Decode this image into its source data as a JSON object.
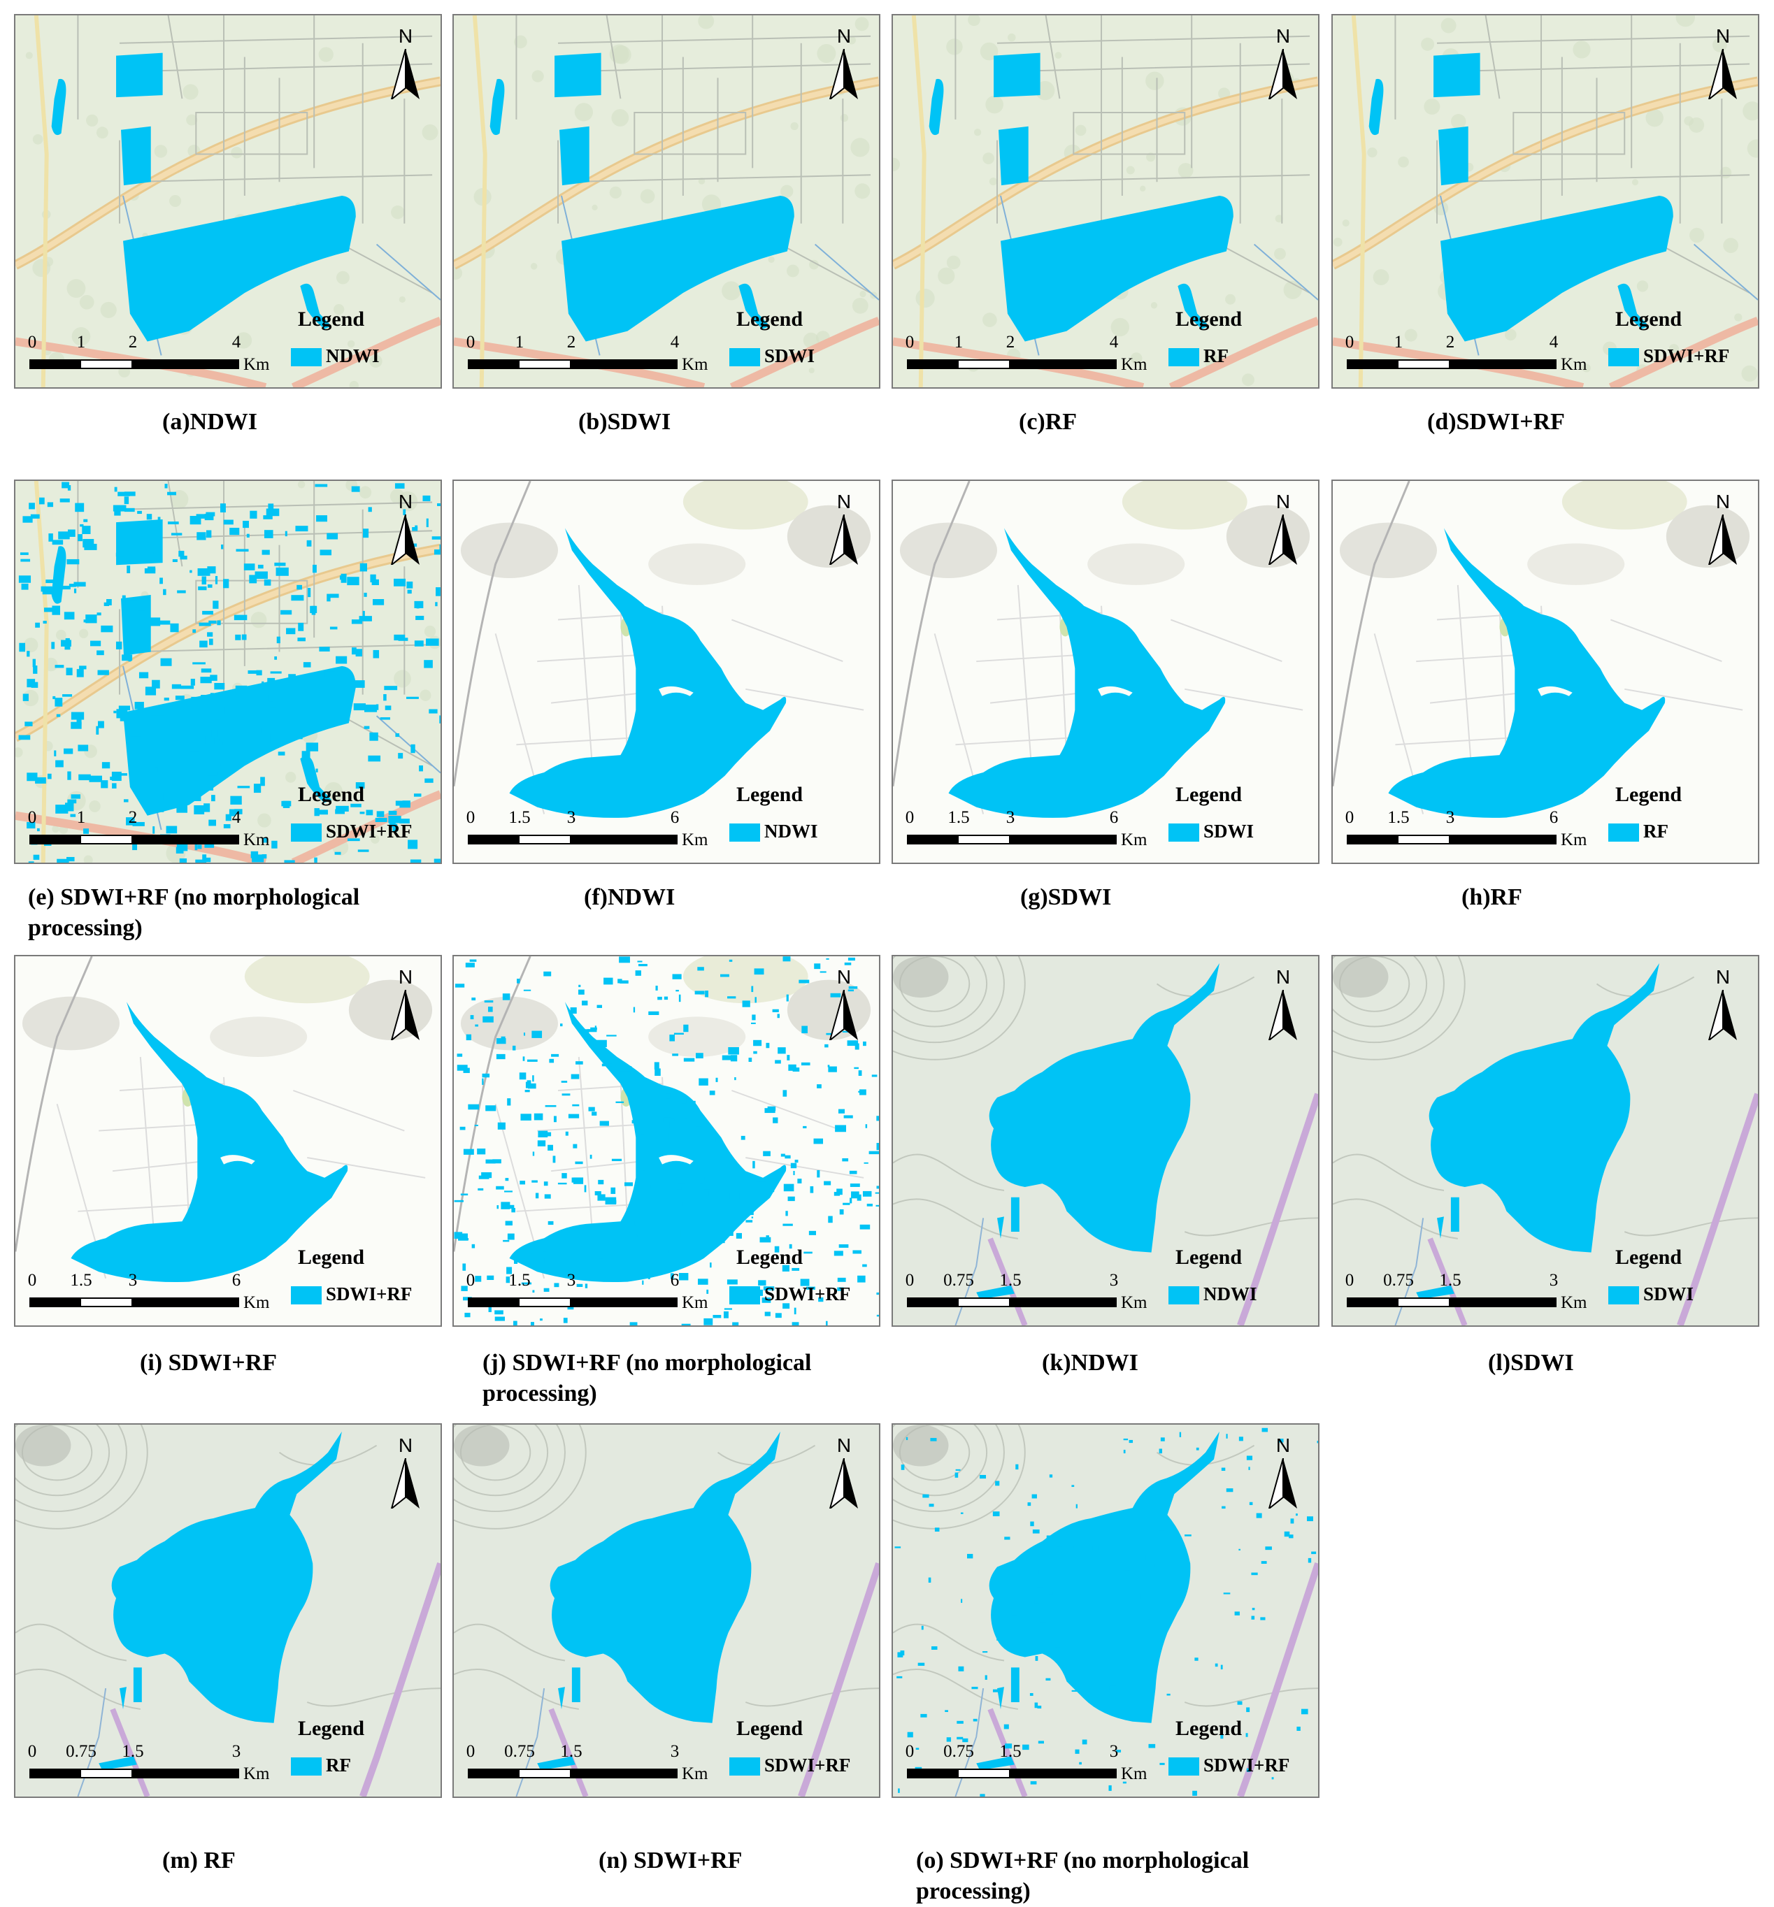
{
  "colors": {
    "water": "#00c3f5",
    "panel_border": "#7a7a7a"
  },
  "north_label": "N",
  "legend_title": "Legend",
  "scale_unit": "Km",
  "panels": [
    {
      "id": "a",
      "legend": "NDWI",
      "scale": [
        "0",
        "1",
        "2",
        "4"
      ],
      "caption": "(a)NDWI",
      "scene": "scene1",
      "noisy": false
    },
    {
      "id": "b",
      "legend": "SDWI",
      "scale": [
        "0",
        "1",
        "2",
        "4"
      ],
      "caption": "(b)SDWI",
      "scene": "scene1",
      "noisy": false
    },
    {
      "id": "c",
      "legend": "RF",
      "scale": [
        "0",
        "1",
        "2",
        "4"
      ],
      "caption": "(c)RF",
      "scene": "scene1",
      "noisy": false
    },
    {
      "id": "d",
      "legend": "SDWI+RF",
      "scale": [
        "0",
        "1",
        "2",
        "4"
      ],
      "caption": "(d)SDWI+RF",
      "scene": "scene1",
      "noisy": false
    },
    {
      "id": "e",
      "legend": "SDWI+RF",
      "scale": [
        "0",
        "1",
        "2",
        "4"
      ],
      "caption": "(e) SDWI+RF (no morphological processing)",
      "scene": "scene1",
      "noisy": true
    },
    {
      "id": "f",
      "legend": "NDWI",
      "scale": [
        "0",
        "1.5",
        "3",
        "6"
      ],
      "caption": "(f)NDWI",
      "scene": "scene2",
      "noisy": false
    },
    {
      "id": "g",
      "legend": "SDWI",
      "scale": [
        "0",
        "1.5",
        "3",
        "6"
      ],
      "caption": "(g)SDWI",
      "scene": "scene2",
      "noisy": false
    },
    {
      "id": "h",
      "legend": "RF",
      "scale": [
        "0",
        "1.5",
        "3",
        "6"
      ],
      "caption": "(h)RF",
      "scene": "scene2",
      "noisy": false
    },
    {
      "id": "i",
      "legend": "SDWI+RF",
      "scale": [
        "0",
        "1.5",
        "3",
        "6"
      ],
      "caption": "(i) SDWI+RF",
      "scene": "scene2",
      "noisy": false
    },
    {
      "id": "j",
      "legend": "SDWI+RF",
      "scale": [
        "0",
        "1.5",
        "3",
        "6"
      ],
      "caption": "(j) SDWI+RF (no morphological processing)",
      "scene": "scene2",
      "noisy": true
    },
    {
      "id": "k",
      "legend": "NDWI",
      "scale": [
        "0",
        "0.75",
        "1.5",
        "3"
      ],
      "caption": "(k)NDWI",
      "scene": "scene3",
      "noisy": false
    },
    {
      "id": "l",
      "legend": "SDWI",
      "scale": [
        "0",
        "0.75",
        "1.5",
        "3"
      ],
      "caption": "(l)SDWI",
      "scene": "scene3",
      "noisy": false
    },
    {
      "id": "m",
      "legend": "RF",
      "scale": [
        "0",
        "0.75",
        "1.5",
        "3"
      ],
      "caption": "(m) RF",
      "scene": "scene3",
      "noisy": false
    },
    {
      "id": "n",
      "legend": "SDWI+RF",
      "scale": [
        "0",
        "0.75",
        "1.5",
        "3"
      ],
      "caption": "(n) SDWI+RF",
      "scene": "scene3",
      "noisy": false
    },
    {
      "id": "o",
      "legend": "SDWI+RF",
      "scale": [
        "0",
        "0.75",
        "1.5",
        "3"
      ],
      "caption": "(o) SDWI+RF (no morphological processing)",
      "scene": "scene3",
      "noisy": true
    }
  ]
}
